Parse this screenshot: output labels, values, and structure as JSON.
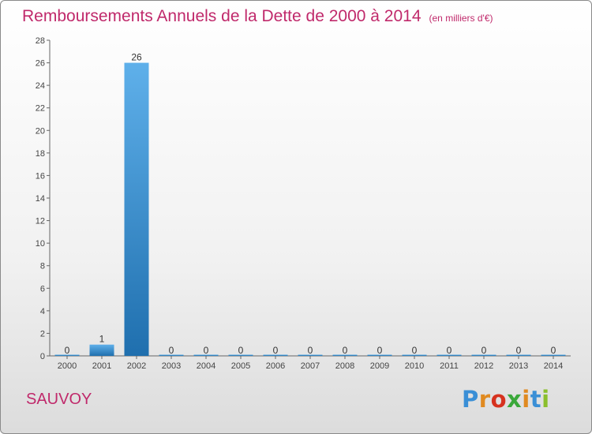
{
  "title": "Remboursements Annuels de la Dette de 2000 à 2014",
  "unit": "(en milliers d'€)",
  "commune": "SAUVOY",
  "logo": {
    "text": "Proxiti",
    "colors": [
      "#3a8fd6",
      "#e08a20",
      "#d6321f",
      "#3aa83a",
      "#e08a20",
      "#3a8fd6",
      "#8bbf2c"
    ]
  },
  "colors": {
    "title": "#c0296b",
    "bar_top": "#5fb0ea",
    "bar_bottom": "#1f6fae"
  },
  "chart_data": {
    "type": "bar",
    "categories": [
      "2000",
      "2001",
      "2002",
      "2003",
      "2004",
      "2005",
      "2006",
      "2007",
      "2008",
      "2009",
      "2010",
      "2011",
      "2012",
      "2013",
      "2014"
    ],
    "values": [
      0,
      1,
      26,
      0,
      0,
      0,
      0,
      0,
      0,
      0,
      0,
      0,
      0,
      0,
      0
    ],
    "yticks": [
      0,
      2,
      4,
      6,
      8,
      10,
      12,
      14,
      16,
      18,
      20,
      22,
      24,
      26,
      28
    ],
    "ylim": [
      0,
      28
    ],
    "grid": false
  }
}
